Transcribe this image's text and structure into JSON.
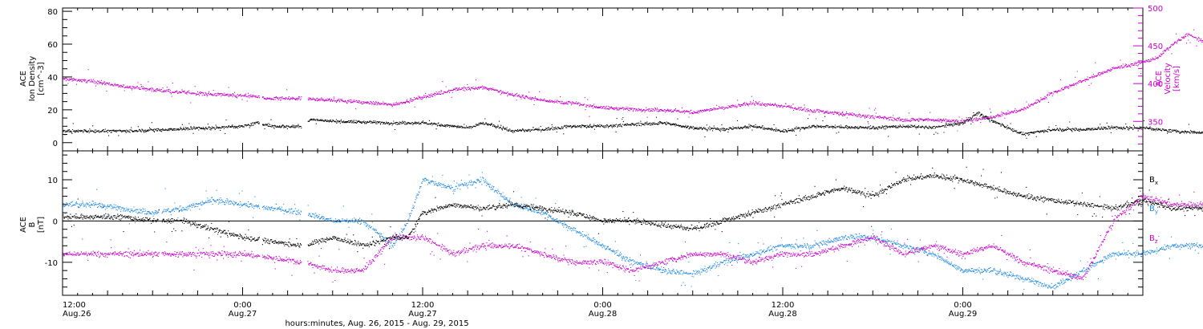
{
  "chart_data": [
    {
      "type": "scatter",
      "title": "",
      "panel": "top",
      "ylabel_left": [
        "ACE",
        "Ion Density",
        "[cm^-3]"
      ],
      "ylabel_right": [
        "ACE",
        "Velocity",
        "[km/s]"
      ],
      "ylim_left": [
        -5,
        82
      ],
      "yticks_left": [
        0,
        20,
        40,
        60,
        80
      ],
      "ylim_right": [
        311,
        500
      ],
      "yticks_right": [
        350,
        400,
        450,
        500
      ],
      "x_hours_range": [
        0,
        78
      ],
      "series": [
        {
          "color": "#000000",
          "axis": "left",
          "keypoints": [
            [
              0,
              7
            ],
            [
              4,
              7
            ],
            [
              10,
              9
            ],
            [
              12,
              10
            ],
            [
              13,
              12
            ],
            [
              13.5,
              11
            ],
            [
              14,
              10
            ],
            [
              16,
              10
            ],
            [
              16.5,
              14
            ],
            [
              18,
              13
            ],
            [
              22,
              12
            ],
            [
              24,
              12
            ],
            [
              26,
              10
            ],
            [
              27,
              9
            ],
            [
              28,
              12
            ],
            [
              30,
              7
            ],
            [
              32,
              8
            ],
            [
              34,
              10
            ],
            [
              36,
              10
            ],
            [
              40,
              12
            ],
            [
              42,
              9
            ],
            [
              44,
              8
            ],
            [
              46,
              10
            ],
            [
              48,
              7
            ],
            [
              50,
              10
            ],
            [
              54,
              9
            ],
            [
              56,
              10
            ],
            [
              58,
              9
            ],
            [
              60,
              12
            ],
            [
              61,
              18
            ],
            [
              62,
              13
            ],
            [
              64,
              5
            ],
            [
              66,
              8
            ],
            [
              68,
              8
            ],
            [
              70,
              9
            ],
            [
              72,
              9
            ],
            [
              74,
              7
            ],
            [
              78,
              5
            ]
          ]
        },
        {
          "color": "#cc00cc",
          "axis": "right",
          "keypoints": [
            [
              0,
              406
            ],
            [
              2,
              403
            ],
            [
              4,
              396
            ],
            [
              6,
              392
            ],
            [
              8,
              388
            ],
            [
              10,
              386
            ],
            [
              12,
              384
            ],
            [
              13,
              383
            ],
            [
              13.5,
              380
            ],
            [
              16,
              380
            ],
            [
              18,
              378
            ],
            [
              20,
              375
            ],
            [
              22,
              372
            ],
            [
              24,
              382
            ],
            [
              26,
              392
            ],
            [
              28,
              395
            ],
            [
              30,
              385
            ],
            [
              32,
              378
            ],
            [
              34,
              374
            ],
            [
              36,
              368
            ],
            [
              38,
              366
            ],
            [
              40,
              365
            ],
            [
              42,
              362
            ],
            [
              44,
              368
            ],
            [
              46,
              374
            ],
            [
              48,
              370
            ],
            [
              50,
              364
            ],
            [
              52,
              360
            ],
            [
              54,
              356
            ],
            [
              56,
              352
            ],
            [
              58,
              352
            ],
            [
              60,
              350
            ],
            [
              62,
              356
            ],
            [
              64,
              366
            ],
            [
              66,
              388
            ],
            [
              68,
              404
            ],
            [
              70,
              420
            ],
            [
              72,
              428
            ],
            [
              73,
              435
            ],
            [
              74,
              452
            ],
            [
              75,
              465
            ],
            [
              76,
              455
            ],
            [
              78,
              455
            ]
          ]
        }
      ]
    },
    {
      "type": "scatter",
      "title": "",
      "panel": "bottom",
      "ylabel_left": [
        "ACE",
        "B",
        "[nT]"
      ],
      "ylim": [
        -18,
        17
      ],
      "yticks": [
        -10,
        0,
        10
      ],
      "zero_line": true,
      "x_hours_range": [
        0,
        78
      ],
      "series": [
        {
          "name": "Bx",
          "color": "#000000",
          "keypoints": [
            [
              0,
              1
            ],
            [
              4,
              1
            ],
            [
              6,
              0
            ],
            [
              8,
              0
            ],
            [
              10,
              -2
            ],
            [
              12,
              -4
            ],
            [
              14,
              -5
            ],
            [
              16,
              -6
            ],
            [
              18,
              -4
            ],
            [
              20,
              -6
            ],
            [
              22,
              -4
            ],
            [
              23,
              -4
            ],
            [
              24,
              2
            ],
            [
              26,
              4
            ],
            [
              28,
              3
            ],
            [
              30,
              4
            ],
            [
              32,
              3
            ],
            [
              34,
              2
            ],
            [
              36,
              0
            ],
            [
              38,
              0
            ],
            [
              40,
              -1
            ],
            [
              42,
              -2
            ],
            [
              44,
              0
            ],
            [
              46,
              2
            ],
            [
              48,
              4
            ],
            [
              50,
              6
            ],
            [
              52,
              8
            ],
            [
              54,
              6
            ],
            [
              56,
              10
            ],
            [
              58,
              11
            ],
            [
              60,
              10
            ],
            [
              62,
              8
            ],
            [
              64,
              6
            ],
            [
              66,
              5
            ],
            [
              68,
              4
            ],
            [
              70,
              3
            ],
            [
              72,
              5
            ],
            [
              74,
              3
            ],
            [
              76,
              3
            ],
            [
              78,
              2
            ]
          ]
        },
        {
          "name": "By",
          "color": "#1e88e5",
          "keypoints": [
            [
              0,
              4
            ],
            [
              2,
              4
            ],
            [
              4,
              3
            ],
            [
              6,
              2
            ],
            [
              8,
              3
            ],
            [
              10,
              5
            ],
            [
              12,
              4
            ],
            [
              14,
              3
            ],
            [
              16,
              2
            ],
            [
              18,
              0
            ],
            [
              20,
              0
            ],
            [
              22,
              -6
            ],
            [
              23,
              0
            ],
            [
              24,
              10
            ],
            [
              26,
              8
            ],
            [
              28,
              10
            ],
            [
              30,
              4
            ],
            [
              32,
              2
            ],
            [
              34,
              -2
            ],
            [
              36,
              -6
            ],
            [
              38,
              -10
            ],
            [
              40,
              -12
            ],
            [
              42,
              -13
            ],
            [
              44,
              -10
            ],
            [
              46,
              -8
            ],
            [
              48,
              -6
            ],
            [
              50,
              -6
            ],
            [
              52,
              -4
            ],
            [
              54,
              -4
            ],
            [
              56,
              -6
            ],
            [
              58,
              -8
            ],
            [
              60,
              -12
            ],
            [
              62,
              -12
            ],
            [
              64,
              -14
            ],
            [
              66,
              -16
            ],
            [
              68,
              -12
            ],
            [
              70,
              -8
            ],
            [
              72,
              -8
            ],
            [
              74,
              -6
            ],
            [
              76,
              -6
            ],
            [
              78,
              -6
            ]
          ]
        },
        {
          "name": "Bz",
          "color": "#cc00cc",
          "keypoints": [
            [
              0,
              -8
            ],
            [
              4,
              -8
            ],
            [
              6,
              -8
            ],
            [
              8,
              -8
            ],
            [
              10,
              -8
            ],
            [
              12,
              -8
            ],
            [
              14,
              -9
            ],
            [
              16,
              -10
            ],
            [
              18,
              -12
            ],
            [
              20,
              -12
            ],
            [
              22,
              -4
            ],
            [
              24,
              -4
            ],
            [
              26,
              -8
            ],
            [
              28,
              -6
            ],
            [
              30,
              -6
            ],
            [
              32,
              -8
            ],
            [
              34,
              -10
            ],
            [
              36,
              -10
            ],
            [
              38,
              -12
            ],
            [
              40,
              -10
            ],
            [
              42,
              -8
            ],
            [
              44,
              -8
            ],
            [
              46,
              -10
            ],
            [
              48,
              -8
            ],
            [
              50,
              -8
            ],
            [
              52,
              -6
            ],
            [
              54,
              -4
            ],
            [
              56,
              -8
            ],
            [
              58,
              -6
            ],
            [
              60,
              -8
            ],
            [
              62,
              -6
            ],
            [
              64,
              -10
            ],
            [
              66,
              -12
            ],
            [
              68,
              -14
            ],
            [
              70,
              0
            ],
            [
              72,
              6
            ],
            [
              74,
              4
            ],
            [
              76,
              4
            ],
            [
              78,
              4
            ]
          ]
        }
      ],
      "legend": [
        {
          "label": "B",
          "sub": "x",
          "color": "#000000"
        },
        {
          "label": "B",
          "sub": "y",
          "color": "#1e88e5"
        },
        {
          "label": "B",
          "sub": "z",
          "color": "#cc00cc"
        }
      ]
    }
  ],
  "x_axis": {
    "xlabel": "hours:minutes, Aug. 26, 2015 - Aug. 29, 2015",
    "ticks": [
      {
        "hour": 0,
        "time": "12:00",
        "date": "Aug.26"
      },
      {
        "hour": 12,
        "time": "0:00",
        "date": "Aug.27"
      },
      {
        "hour": 24,
        "time": "12:00",
        "date": "Aug.27"
      },
      {
        "hour": 36,
        "time": "0:00",
        "date": "Aug.28"
      },
      {
        "hour": 48,
        "time": "12:00",
        "date": "Aug.28"
      },
      {
        "hour": 60,
        "time": "0:00",
        "date": "Aug.29"
      }
    ],
    "full_range_hours": [
      0,
      72
    ]
  },
  "colors": {
    "axis": "#000000",
    "density": "#000000",
    "velocity": "#cc00cc",
    "bx": "#000000",
    "by": "#1e88e5",
    "bz": "#cc00cc"
  }
}
